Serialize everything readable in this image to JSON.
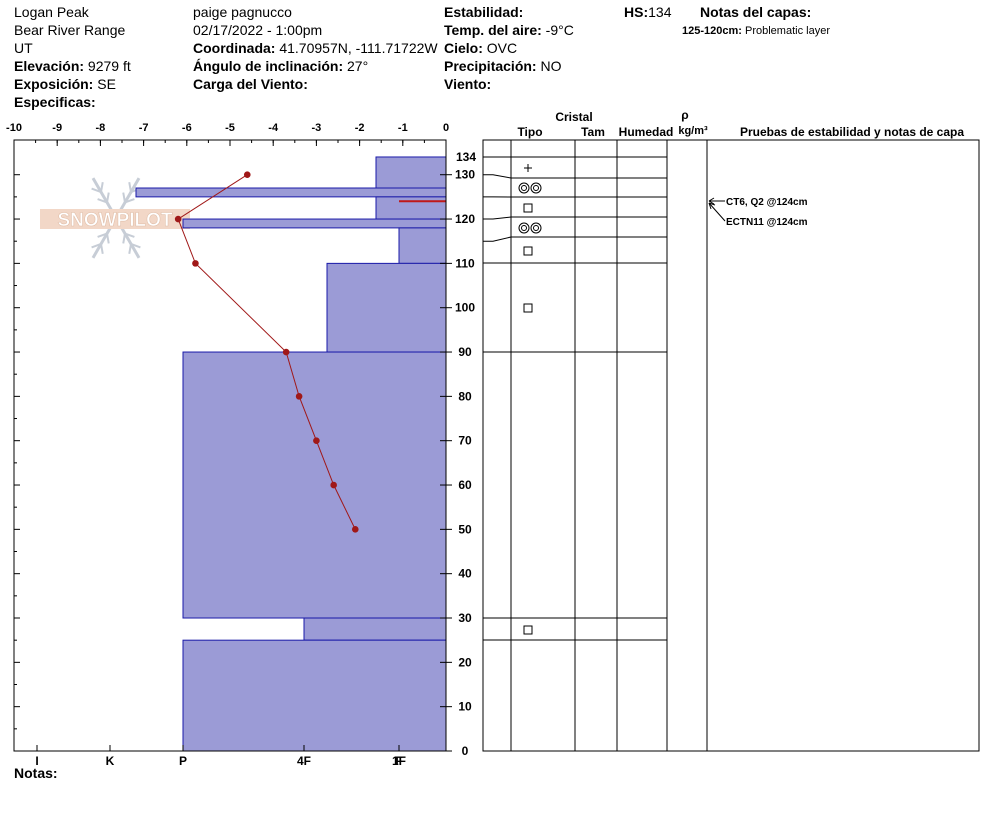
{
  "header": {
    "location": "Logan Peak",
    "range": "Bear River Range",
    "state": "UT",
    "elevation_label": "Elevación:",
    "elevation_value": "9279 ft",
    "aspect_label": "Exposición:",
    "aspect_value": "SE",
    "specifics_label": "Especificas:",
    "observer": "paige pagnucco",
    "datetime": "02/17/2022 - 1:00pm",
    "coord_label": "Coordinada:",
    "coord_value": "41.70957N, -111.71722W",
    "slope_label": "Ángulo de inclinación:",
    "slope_value": "27°",
    "wind_load_label": "Carga del Viento:",
    "stability_label": "Estabilidad:",
    "air_temp_label": "Temp. del aire:",
    "air_temp_value": "-9°C",
    "sky_label": "Cielo:",
    "sky_value": "OVC",
    "precip_label": "Precipitación:",
    "precip_value": "NO",
    "wind_label": "Viento:",
    "hs_label": "HS:",
    "hs_value": "134",
    "layer_notes_label": "Notas del capas:",
    "layer_note_range": "125-120cm:",
    "layer_note_text": "Problematic layer"
  },
  "table_headers": {
    "crystal": "Cristal",
    "type": "Tipo",
    "size": "Tam",
    "moisture": "Humedad",
    "rho": "ρ",
    "density_unit": "kg/m³",
    "tests": "Pruebas de estabilidad y notas de capa"
  },
  "notes_label": "Notas:",
  "watermark": "SNOWPILOT",
  "stability_tests": [
    "CT6, Q2 @124cm",
    "ECTN11 @124cm"
  ],
  "colors": {
    "hardness_fill": "#9b9bd6",
    "hardness_stroke": "#1a1aa8",
    "temp_line": "#a01818",
    "weak_layer": "#c01818"
  },
  "chart_data": {
    "type": "snow-profile",
    "temperature_axis": {
      "ticks": [
        -10,
        -9,
        -8,
        -7,
        -6,
        -5,
        -4,
        -3,
        -2,
        -1,
        0
      ],
      "range": [
        -10,
        0
      ]
    },
    "height_axis": {
      "ticks": [
        0,
        10,
        20,
        30,
        40,
        50,
        60,
        70,
        80,
        90,
        100,
        110,
        120,
        130
      ],
      "top_label": 134,
      "range": [
        0,
        134
      ]
    },
    "hardness_axis": {
      "labels": [
        "I",
        "K",
        "P",
        "1F",
        "4F",
        "F"
      ]
    },
    "temperature_profile": [
      {
        "height": 130,
        "temp": -4.6
      },
      {
        "height": 120,
        "temp": -6.2
      },
      {
        "height": 110,
        "temp": -5.8
      },
      {
        "height": 90,
        "temp": -3.7
      },
      {
        "height": 80,
        "temp": -3.4
      },
      {
        "height": 70,
        "temp": -3.0
      },
      {
        "height": 60,
        "temp": -2.6
      },
      {
        "height": 50,
        "temp": -2.1
      }
    ],
    "hardness_layers": [
      {
        "top": 134,
        "bottom": 127,
        "hardness": "1F-"
      },
      {
        "top": 127,
        "bottom": 125,
        "hardness": "P-"
      },
      {
        "top": 125,
        "bottom": 120,
        "hardness": "1F-"
      },
      {
        "top": 120,
        "bottom": 118,
        "hardness": "P"
      },
      {
        "top": 118,
        "bottom": 110,
        "hardness": "1F"
      },
      {
        "top": 110,
        "bottom": 90,
        "hardness": "4F-"
      },
      {
        "top": 90,
        "bottom": 30,
        "hardness": "P"
      },
      {
        "top": 30,
        "bottom": 25,
        "hardness": "4F"
      },
      {
        "top": 25,
        "bottom": 0,
        "hardness": "P"
      }
    ],
    "weak_layer_height": 124,
    "layer_boundaries": [
      134,
      130,
      125,
      120,
      115,
      110,
      90,
      30,
      25
    ],
    "crystal_layers": [
      {
        "height": 132,
        "symbol": "+"
      },
      {
        "height": 127.5,
        "symbol": "◎◎"
      },
      {
        "height": 122.5,
        "symbol": "□"
      },
      {
        "height": 117.5,
        "symbol": "◎◎"
      },
      {
        "height": 113,
        "symbol": "□"
      },
      {
        "height": 100,
        "symbol": "□"
      },
      {
        "height": 27.5,
        "symbol": "□"
      }
    ]
  }
}
